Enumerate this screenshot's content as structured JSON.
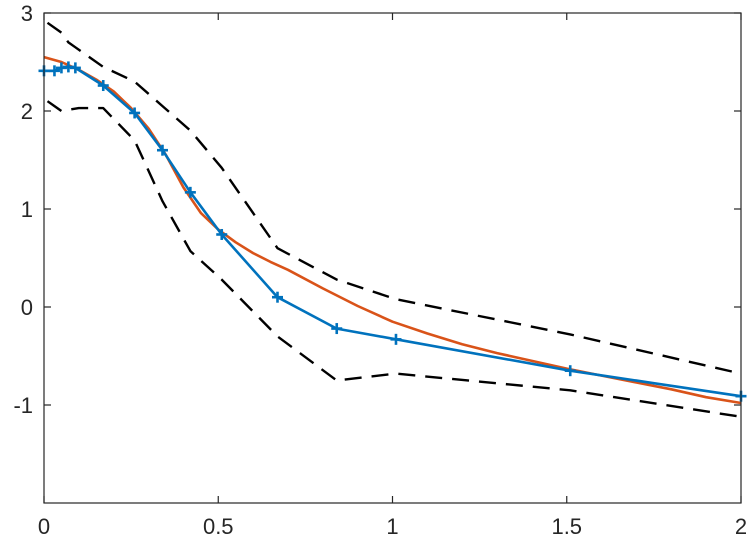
{
  "chart_data": {
    "type": "line",
    "title": "",
    "xlabel": "",
    "ylabel": "",
    "xlim": [
      0,
      2
    ],
    "ylim": [
      -2,
      3
    ],
    "grid": false,
    "legend": "none",
    "x_ticks": [
      {
        "value": 0,
        "label": "0"
      },
      {
        "value": 0.5,
        "label": "0.5"
      },
      {
        "value": 1,
        "label": "1"
      },
      {
        "value": 1.5,
        "label": "1.5"
      },
      {
        "value": 2,
        "label": "2"
      }
    ],
    "y_ticks": [
      {
        "value": -1,
        "label": "-1"
      },
      {
        "value": 0,
        "label": "0"
      },
      {
        "value": 1,
        "label": "1"
      },
      {
        "value": 2,
        "label": "2"
      },
      {
        "value": 3,
        "label": "3"
      }
    ],
    "series": [
      {
        "id": "smooth",
        "color": "#D95319",
        "style": "solid",
        "marker": "none",
        "x": [
          0,
          0.05,
          0.1,
          0.15,
          0.2,
          0.25,
          0.3,
          0.35,
          0.4,
          0.45,
          0.5,
          0.55,
          0.6,
          0.65,
          0.7,
          0.8,
          0.9,
          1.0,
          1.1,
          1.2,
          1.3,
          1.4,
          1.5,
          1.6,
          1.7,
          1.8,
          1.9,
          2.0
        ],
        "y": [
          2.55,
          2.5,
          2.42,
          2.32,
          2.2,
          2.03,
          1.82,
          1.55,
          1.22,
          0.96,
          0.79,
          0.66,
          0.55,
          0.46,
          0.38,
          0.19,
          0.01,
          -0.15,
          -0.27,
          -0.38,
          -0.47,
          -0.55,
          -0.63,
          -0.7,
          -0.77,
          -0.84,
          -0.92,
          -0.98
        ]
      },
      {
        "id": "measured",
        "color": "#0072BD",
        "style": "solid",
        "marker": "plus",
        "x": [
          0,
          0.03,
          0.05,
          0.07,
          0.09,
          0.17,
          0.26,
          0.34,
          0.42,
          0.51,
          0.67,
          0.84,
          1.01,
          1.51,
          2.0
        ],
        "y": [
          2.41,
          2.41,
          2.44,
          2.45,
          2.44,
          2.26,
          1.98,
          1.6,
          1.17,
          0.74,
          0.1,
          -0.22,
          -0.33,
          -0.65,
          -0.91
        ]
      },
      {
        "id": "upper-bound",
        "color": "#000000",
        "style": "dashed",
        "marker": "none",
        "x": [
          0.01,
          0.05,
          0.07,
          0.09,
          0.17,
          0.26,
          0.34,
          0.42,
          0.51,
          0.67,
          0.84,
          1.01,
          1.51,
          2.0
        ],
        "y": [
          2.9,
          2.8,
          2.7,
          2.65,
          2.45,
          2.3,
          2.05,
          1.8,
          1.42,
          0.6,
          0.28,
          0.08,
          -0.28,
          -0.68
        ]
      },
      {
        "id": "lower-bound",
        "color": "#000000",
        "style": "dashed",
        "marker": "none",
        "x": [
          0.01,
          0.03,
          0.05,
          0.1,
          0.17,
          0.26,
          0.34,
          0.42,
          0.51,
          0.67,
          0.84,
          1.01,
          1.51,
          2.0
        ],
        "y": [
          2.1,
          2.05,
          2.0,
          2.03,
          2.03,
          1.7,
          1.08,
          0.57,
          0.28,
          -0.3,
          -0.75,
          -0.68,
          -0.85,
          -1.12
        ]
      }
    ]
  }
}
